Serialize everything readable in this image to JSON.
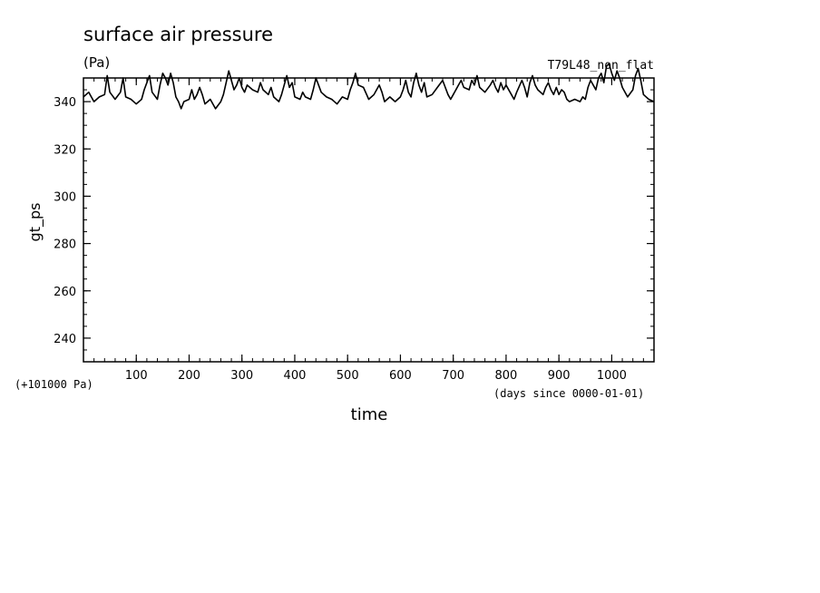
{
  "chart_data": {
    "type": "line",
    "title": "surface air pressure",
    "units": "(Pa)",
    "run_label": "T79L48_non_flat",
    "ylabel": "gt_ps",
    "xlabel": "time",
    "y_offset_note": "(+101000 Pa)",
    "x_units_note": "(days since 0000-01-01)",
    "xlim": [
      0,
      1080
    ],
    "ylim": [
      230,
      350
    ],
    "x_ticks": [
      100,
      200,
      300,
      400,
      500,
      600,
      700,
      800,
      900,
      1000
    ],
    "y_ticks": [
      240,
      260,
      280,
      300,
      320,
      340
    ],
    "series": [
      {
        "color": "#000000",
        "points": [
          [
            0,
            342
          ],
          [
            10,
            344
          ],
          [
            20,
            340
          ],
          [
            30,
            342
          ],
          [
            40,
            343
          ],
          [
            45,
            351
          ],
          [
            50,
            344
          ],
          [
            60,
            341
          ],
          [
            70,
            344
          ],
          [
            75,
            350
          ],
          [
            80,
            342
          ],
          [
            90,
            341
          ],
          [
            100,
            339
          ],
          [
            110,
            341
          ],
          [
            115,
            345
          ],
          [
            120,
            348
          ],
          [
            125,
            351
          ],
          [
            130,
            344
          ],
          [
            140,
            341
          ],
          [
            145,
            347
          ],
          [
            150,
            352
          ],
          [
            155,
            350
          ],
          [
            160,
            347
          ],
          [
            165,
            352
          ],
          [
            170,
            348
          ],
          [
            175,
            342
          ],
          [
            180,
            340
          ],
          [
            185,
            337
          ],
          [
            190,
            340
          ],
          [
            200,
            341
          ],
          [
            205,
            345
          ],
          [
            210,
            341
          ],
          [
            215,
            343
          ],
          [
            220,
            346
          ],
          [
            225,
            343
          ],
          [
            230,
            339
          ],
          [
            240,
            341
          ],
          [
            250,
            337
          ],
          [
            260,
            340
          ],
          [
            265,
            343
          ],
          [
            270,
            348
          ],
          [
            275,
            353
          ],
          [
            280,
            349
          ],
          [
            285,
            345
          ],
          [
            290,
            347
          ],
          [
            295,
            350
          ],
          [
            300,
            346
          ],
          [
            305,
            344
          ],
          [
            310,
            347
          ],
          [
            320,
            345
          ],
          [
            330,
            344
          ],
          [
            335,
            348
          ],
          [
            340,
            345
          ],
          [
            350,
            343
          ],
          [
            355,
            346
          ],
          [
            360,
            342
          ],
          [
            370,
            340
          ],
          [
            375,
            343
          ],
          [
            380,
            347
          ],
          [
            385,
            351
          ],
          [
            390,
            346
          ],
          [
            395,
            348
          ],
          [
            400,
            342
          ],
          [
            410,
            341
          ],
          [
            415,
            344
          ],
          [
            420,
            342
          ],
          [
            430,
            341
          ],
          [
            435,
            345
          ],
          [
            440,
            350
          ],
          [
            445,
            347
          ],
          [
            450,
            344
          ],
          [
            460,
            342
          ],
          [
            470,
            341
          ],
          [
            480,
            339
          ],
          [
            490,
            342
          ],
          [
            500,
            341
          ],
          [
            505,
            345
          ],
          [
            510,
            348
          ],
          [
            515,
            352
          ],
          [
            520,
            347
          ],
          [
            530,
            346
          ],
          [
            540,
            341
          ],
          [
            550,
            343
          ],
          [
            560,
            347
          ],
          [
            565,
            344
          ],
          [
            570,
            340
          ],
          [
            580,
            342
          ],
          [
            590,
            340
          ],
          [
            600,
            342
          ],
          [
            605,
            345
          ],
          [
            610,
            349
          ],
          [
            615,
            344
          ],
          [
            620,
            342
          ],
          [
            625,
            348
          ],
          [
            630,
            352
          ],
          [
            635,
            347
          ],
          [
            640,
            344
          ],
          [
            645,
            348
          ],
          [
            650,
            342
          ],
          [
            660,
            343
          ],
          [
            670,
            346
          ],
          [
            680,
            349
          ],
          [
            685,
            346
          ],
          [
            690,
            343
          ],
          [
            695,
            341
          ],
          [
            700,
            343
          ],
          [
            710,
            347
          ],
          [
            715,
            349
          ],
          [
            720,
            346
          ],
          [
            730,
            345
          ],
          [
            735,
            349
          ],
          [
            740,
            347
          ],
          [
            745,
            351
          ],
          [
            750,
            346
          ],
          [
            760,
            344
          ],
          [
            770,
            347
          ],
          [
            775,
            349
          ],
          [
            780,
            346
          ],
          [
            785,
            344
          ],
          [
            790,
            348
          ],
          [
            795,
            345
          ],
          [
            800,
            347
          ],
          [
            810,
            343
          ],
          [
            815,
            341
          ],
          [
            820,
            344
          ],
          [
            830,
            349
          ],
          [
            835,
            346
          ],
          [
            840,
            342
          ],
          [
            845,
            348
          ],
          [
            850,
            351
          ],
          [
            855,
            347
          ],
          [
            860,
            345
          ],
          [
            870,
            343
          ],
          [
            875,
            346
          ],
          [
            880,
            348
          ],
          [
            885,
            345
          ],
          [
            890,
            343
          ],
          [
            895,
            346
          ],
          [
            900,
            343
          ],
          [
            905,
            345
          ],
          [
            910,
            344
          ],
          [
            915,
            341
          ],
          [
            920,
            340
          ],
          [
            930,
            341
          ],
          [
            940,
            340
          ],
          [
            945,
            342
          ],
          [
            950,
            341
          ],
          [
            955,
            346
          ],
          [
            960,
            349
          ],
          [
            965,
            347
          ],
          [
            970,
            345
          ],
          [
            975,
            350
          ],
          [
            980,
            352
          ],
          [
            985,
            348
          ],
          [
            990,
            355
          ],
          [
            995,
            356
          ],
          [
            1000,
            352
          ],
          [
            1005,
            349
          ],
          [
            1010,
            353
          ],
          [
            1015,
            350
          ],
          [
            1020,
            346
          ],
          [
            1030,
            342
          ],
          [
            1040,
            345
          ],
          [
            1045,
            351
          ],
          [
            1050,
            354
          ],
          [
            1055,
            349
          ],
          [
            1060,
            343
          ],
          [
            1070,
            341
          ],
          [
            1080,
            340
          ]
        ]
      }
    ]
  }
}
